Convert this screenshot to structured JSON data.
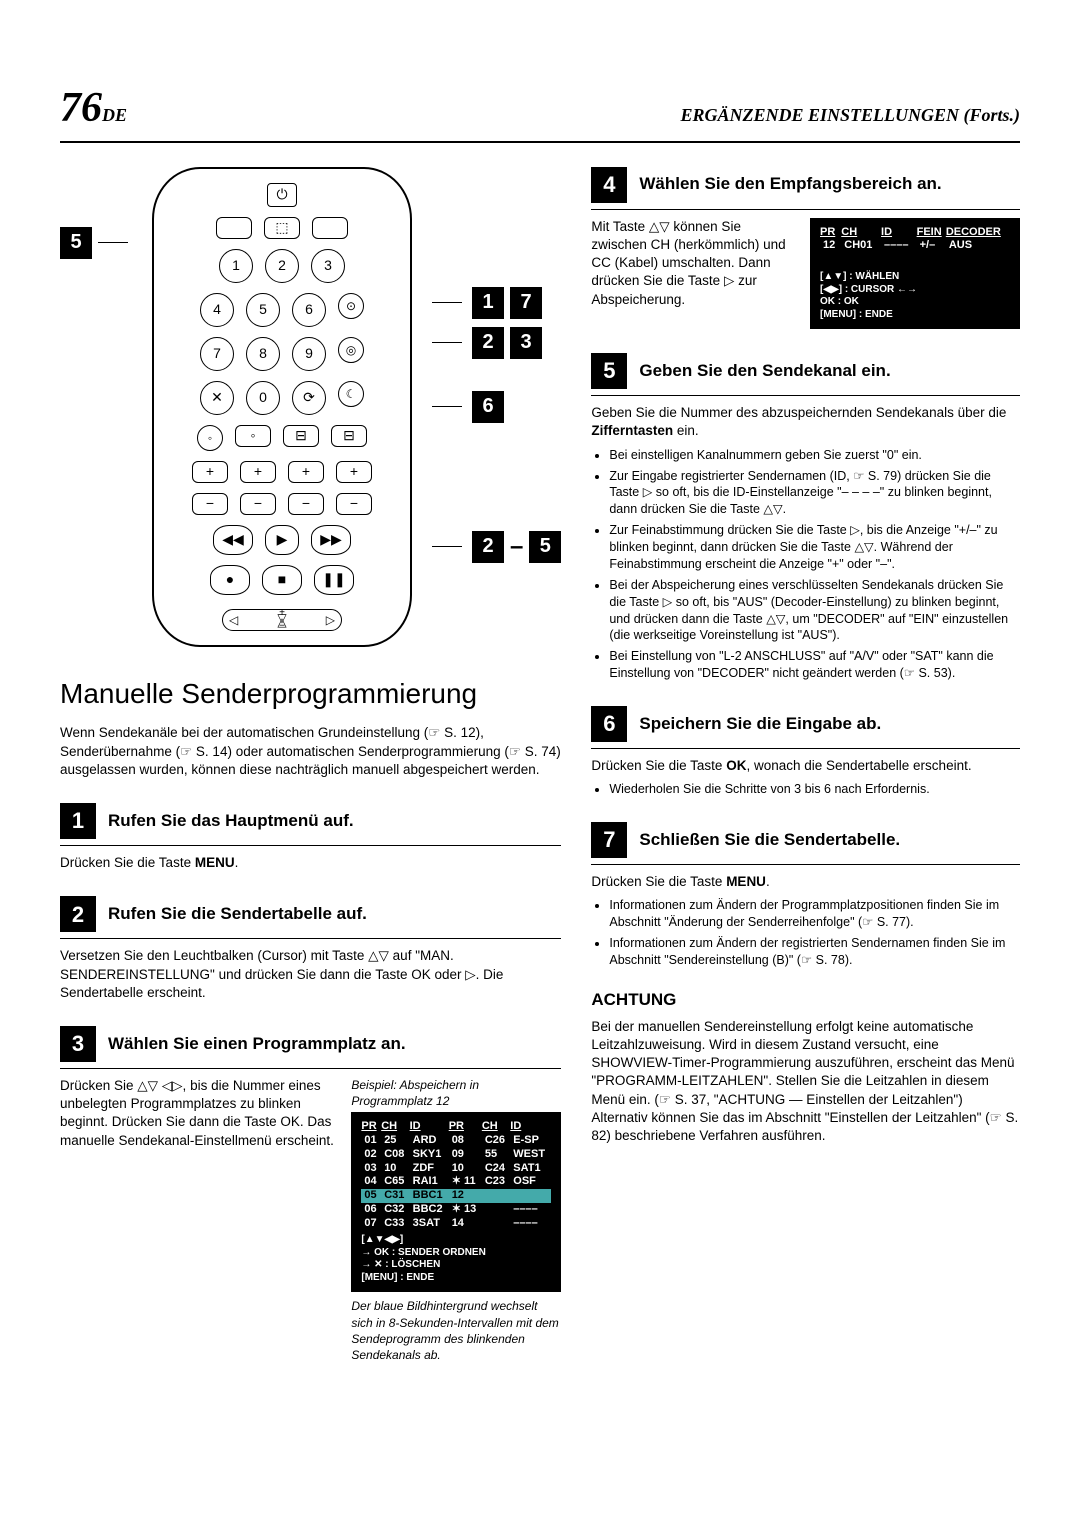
{
  "page": {
    "num": "76",
    "lang": "DE",
    "section": "ERGÄNZENDE EINSTELLUNGEN (Forts.)"
  },
  "title": "Manuelle Senderprogrammierung",
  "intro": "Wenn Sendekanäle bei der automatischen Grundeinstellung (☞ S. 12), Senderübernahme (☞ S. 14) oder automatischen Senderprogrammierung (☞ S. 74) ausgelassen wurden, können diese nachträglich manuell abgespeichert werden.",
  "callouts": {
    "c1": "5",
    "c2a": "1",
    "c2b": "7",
    "c3a": "2",
    "c3b": "3",
    "c4": "6",
    "c5a": "2",
    "c5b": "5"
  },
  "steps": {
    "s1": {
      "title": "Rufen Sie das Hauptmenü auf.",
      "body": "Drücken Sie die Taste MENU."
    },
    "s2": {
      "title": "Rufen Sie die Sendertabelle auf.",
      "body": "Versetzen Sie den Leuchtbalken (Cursor) mit Taste △▽ auf \"MAN. SENDEREINSTELLUNG\" und drücken Sie dann die Taste OK oder ▷. Die Sendertabelle erscheint."
    },
    "s3": {
      "title": "Wählen Sie einen Programmplatz an.",
      "body": "Drücken Sie △▽ ◁▷, bis die Nummer eines unbelegten Programmplatzes zu blinken beginnt. Drücken Sie dann die Taste OK. Das manuelle Sendekanal-Einstellmenü erscheint.",
      "caption": "Beispiel: Abspeichern in Programmplatz 12",
      "note": "Der blaue Bildhintergrund wechselt sich in 8-Sekunden-Intervallen mit dem Sendeprogramm des blinkenden Sendekanals ab."
    },
    "s4": {
      "title": "Wählen Sie den Empfangsbereich an.",
      "body": "Mit Taste △▽ können Sie zwischen CH (herkömmlich) und CC (Kabel) umschalten. Dann drücken Sie die Taste ▷ zur Abspeicherung."
    },
    "s5": {
      "title": "Geben Sie den Sendekanal ein.",
      "body": "Geben Sie die Nummer des abzuspeichernden Sendekanals über die Zifferntasten ein.",
      "bullets": [
        "Bei einstelligen Kanalnummern geben Sie zuerst \"0\" ein.",
        "Zur Eingabe registrierter Sendernamen (ID, ☞ S. 79) drücken Sie die Taste ▷ so oft, bis die ID-Einstellanzeige \"– – – –\" zu blinken beginnt, dann drücken Sie die Taste △▽.",
        "Zur Feinabstimmung drücken Sie die Taste ▷, bis die Anzeige \"+/–\" zu blinken beginnt, dann drücken Sie die Taste △▽. Während der Feinabstimmung erscheint die Anzeige \"+\" oder \"–\".",
        "Bei der Abspeicherung eines verschlüsselten Sendekanals drücken Sie die Taste ▷ so oft, bis \"AUS\" (Decoder-Einstellung) zu blinken beginnt, und drücken dann die Taste △▽, um \"DECODER\" auf \"EIN\" einzustellen (die werkseitige Voreinstellung ist \"AUS\").",
        "Bei Einstellung von \"L-2 ANSCHLUSS\" auf \"A/V\" oder \"SAT\" kann die Einstellung von \"DECODER\" nicht geändert werden (☞ S. 53)."
      ]
    },
    "s6": {
      "title": "Speichern Sie die Eingabe ab.",
      "body": "Drücken Sie die Taste OK, wonach die Sendertabelle erscheint.",
      "bullets": [
        "Wiederholen Sie die Schritte von 3 bis 6 nach Erfordernis."
      ]
    },
    "s7": {
      "title": "Schließen Sie die Sendertabelle.",
      "body": "Drücken Sie die Taste MENU.",
      "bullets": [
        "Informationen zum Ändern der Programmplatzpositionen finden Sie im Abschnitt \"Änderung der Senderreihenfolge\" (☞ S. 77).",
        "Informationen zum Ändern der registrierten Sendernamen finden Sie im Abschnitt \"Sendereinstellung (B)\" (☞ S. 78)."
      ]
    }
  },
  "osd3": {
    "headers": [
      "PR",
      "CH",
      "ID",
      "PR",
      "CH",
      "ID"
    ],
    "rows": [
      [
        "01",
        "25",
        "ARD",
        "08",
        "C26",
        "E-SP"
      ],
      [
        "02",
        "C08",
        "SKY1",
        "09",
        "55",
        "WEST"
      ],
      [
        "03",
        "10",
        "ZDF",
        "10",
        "C24",
        "SAT1"
      ],
      [
        "04",
        "C65",
        "RAI1",
        "✶ 11",
        "C23",
        "OSF"
      ],
      [
        "05",
        "C31",
        "BBC1",
        "12",
        "",
        ""
      ],
      [
        "06",
        "C32",
        "BBC2",
        "✶ 13",
        "",
        "––––"
      ],
      [
        "07",
        "C33",
        "3SAT",
        "14",
        "",
        "––––"
      ]
    ],
    "foot": [
      "[▲▼◀▶]",
      "→ OK : SENDER ORDNEN",
      "→ ✕ : LÖSCHEN",
      "[MENU] : ENDE"
    ]
  },
  "osd4": {
    "head": [
      "PR",
      "CH",
      "ID",
      "FEIN",
      "DECODER"
    ],
    "row": [
      "12",
      "CH01",
      "––––",
      "+/–",
      "AUS"
    ],
    "foot": [
      "[▲▼] : WÄHLEN",
      "[◀▶] : CURSOR ←→",
      "OK : OK",
      "[MENU] : ENDE"
    ]
  },
  "attention": {
    "title": "ACHTUNG",
    "body": "Bei der manuellen Sendereinstellung erfolgt keine automatische Leitzahlzuweisung. Wird in diesem Zustand versucht, eine SHOWVIEW-Timer-Programmierung auszuführen, erscheint das Menü \"PROGRAMM-LEITZAHLEN\". Stellen Sie die Leitzahlen in diesem Menü ein. (☞ S. 37, \"ACHTUNG — Einstellen der Leitzahlen\") Alternativ können Sie das im Abschnitt \"Einstellen der Leitzahlen\" (☞ S. 82) beschriebene Verfahren ausführen."
  }
}
